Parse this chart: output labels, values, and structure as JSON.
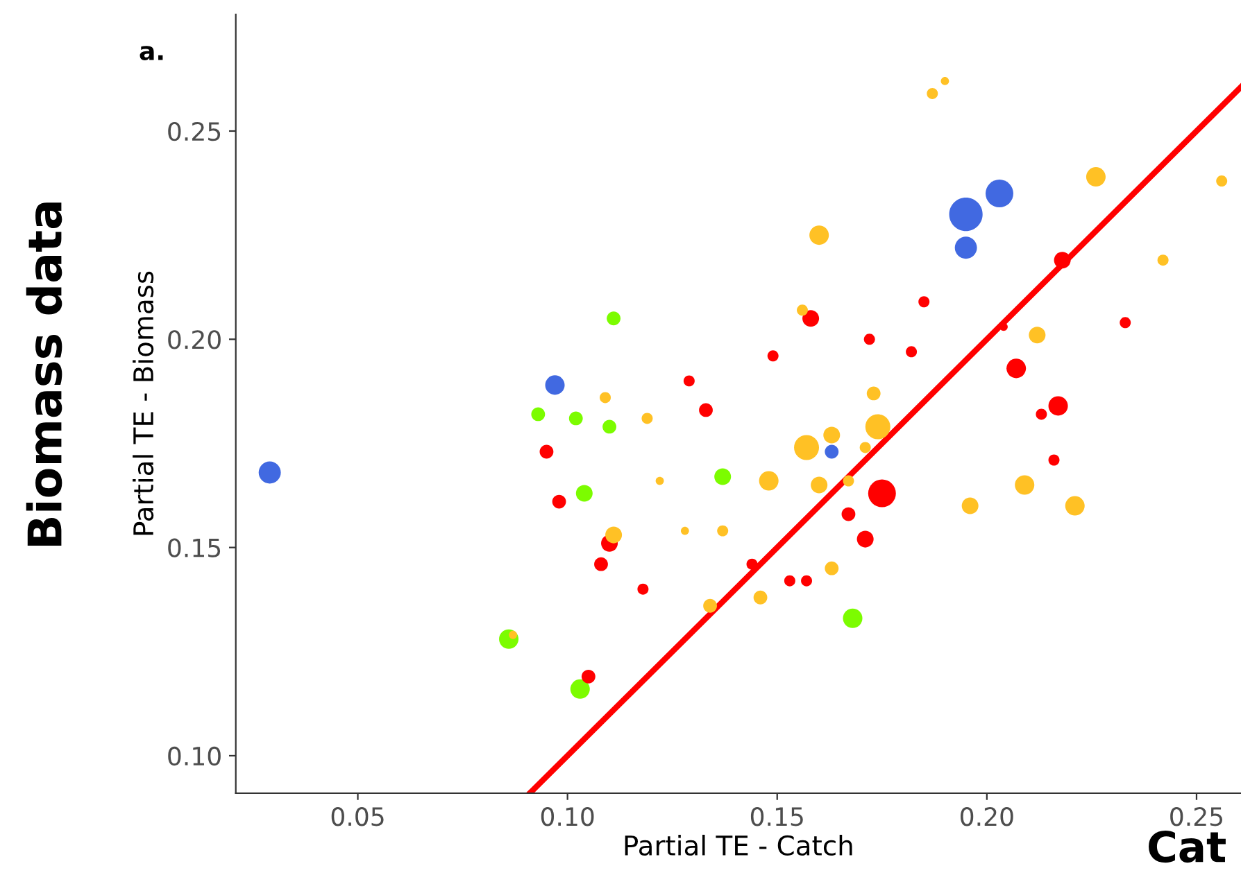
{
  "chart_data": {
    "type": "bubble",
    "ylabel": "Partial TE - Biomass",
    "xlabel": "Partial TE - Catch",
    "annotations": [
      "a.",
      "Biomass data",
      "Cat"
    ],
    "xlim": [
      0.0209,
      0.2606
    ],
    "ylim": [
      0.091,
      0.278
    ],
    "xticks": [
      {
        "value": 0.05,
        "label": "0.05"
      },
      {
        "value": 0.1,
        "label": "0.10"
      },
      {
        "value": 0.15,
        "label": "0.15"
      },
      {
        "value": 0.2,
        "label": "0.20"
      },
      {
        "value": 0.25,
        "label": "0.25"
      }
    ],
    "yticks": [
      {
        "value": 0.1,
        "label": "0.10"
      },
      {
        "value": 0.15,
        "label": "0.15"
      },
      {
        "value": 0.2,
        "label": "0.20"
      },
      {
        "value": 0.25,
        "label": "0.25"
      }
    ],
    "grid": false,
    "legend": false,
    "marker": "circle",
    "series": [
      {
        "color": "#4169e1",
        "x": [
          0.029,
          0.097,
          0.195,
          0.203,
          0.195,
          0.163
        ],
        "values": [
          0.168,
          0.189,
          0.23,
          0.235,
          0.222,
          0.173
        ],
        "sizes": [
          0.44,
          0.34,
          1,
          0.69,
          0.44,
          0.17
        ]
      },
      {
        "color": "#7cfc00",
        "x": [
          0.111,
          0.093,
          0.102,
          0.11,
          0.137,
          0.104,
          0.086,
          0.103,
          0.168
        ],
        "values": [
          0.205,
          0.182,
          0.181,
          0.179,
          0.167,
          0.163,
          0.128,
          0.116,
          0.133
        ],
        "sizes": [
          0.17,
          0.17,
          0.17,
          0.17,
          0.25,
          0.25,
          0.34,
          0.34,
          0.34
        ]
      },
      {
        "color": "#ff0000",
        "x": [
          0.129,
          0.133,
          0.095,
          0.098,
          0.11,
          0.108,
          0.118,
          0.105,
          0.158,
          0.149,
          0.172,
          0.185,
          0.182,
          0.218,
          0.233,
          0.207,
          0.217,
          0.213,
          0.216,
          0.175,
          0.167,
          0.171,
          0.144,
          0.153,
          0.157,
          0.204
        ],
        "values": [
          0.19,
          0.183,
          0.173,
          0.161,
          0.151,
          0.146,
          0.14,
          0.119,
          0.205,
          0.196,
          0.2,
          0.209,
          0.197,
          0.219,
          0.204,
          0.193,
          0.184,
          0.182,
          0.171,
          0.163,
          0.158,
          0.152,
          0.146,
          0.142,
          0.142,
          0.203
        ],
        "sizes": [
          0.11,
          0.17,
          0.17,
          0.17,
          0.25,
          0.17,
          0.11,
          0.17,
          0.25,
          0.11,
          0.11,
          0.11,
          0.11,
          0.25,
          0.11,
          0.34,
          0.34,
          0.11,
          0.11,
          0.69,
          0.17,
          0.25,
          0.11,
          0.11,
          0.11,
          0.06
        ]
      },
      {
        "color": "#ffc125",
        "x": [
          0.109,
          0.119,
          0.122,
          0.111,
          0.128,
          0.134,
          0.087,
          0.137,
          0.187,
          0.19,
          0.226,
          0.256,
          0.242,
          0.16,
          0.156,
          0.212,
          0.173,
          0.174,
          0.163,
          0.157,
          0.171,
          0.148,
          0.16,
          0.167,
          0.196,
          0.209,
          0.221,
          0.163,
          0.146
        ],
        "values": [
          0.186,
          0.181,
          0.166,
          0.153,
          0.154,
          0.136,
          0.129,
          0.154,
          0.259,
          0.262,
          0.239,
          0.238,
          0.219,
          0.225,
          0.207,
          0.201,
          0.187,
          0.179,
          0.177,
          0.174,
          0.174,
          0.166,
          0.165,
          0.166,
          0.16,
          0.165,
          0.16,
          0.145,
          0.138
        ],
        "sizes": [
          0.11,
          0.11,
          0.06,
          0.25,
          0.06,
          0.17,
          0.06,
          0.11,
          0.11,
          0.06,
          0.34,
          0.11,
          0.11,
          0.34,
          0.11,
          0.25,
          0.17,
          0.56,
          0.25,
          0.56,
          0.11,
          0.34,
          0.25,
          0.11,
          0.25,
          0.34,
          0.34,
          0.17,
          0.17
        ]
      },
      {
        "type": "line",
        "marker": "none",
        "color": "#ff0000",
        "x": [
          0.091,
          0.2606
        ],
        "values": [
          0.091,
          0.2606
        ]
      }
    ]
  }
}
